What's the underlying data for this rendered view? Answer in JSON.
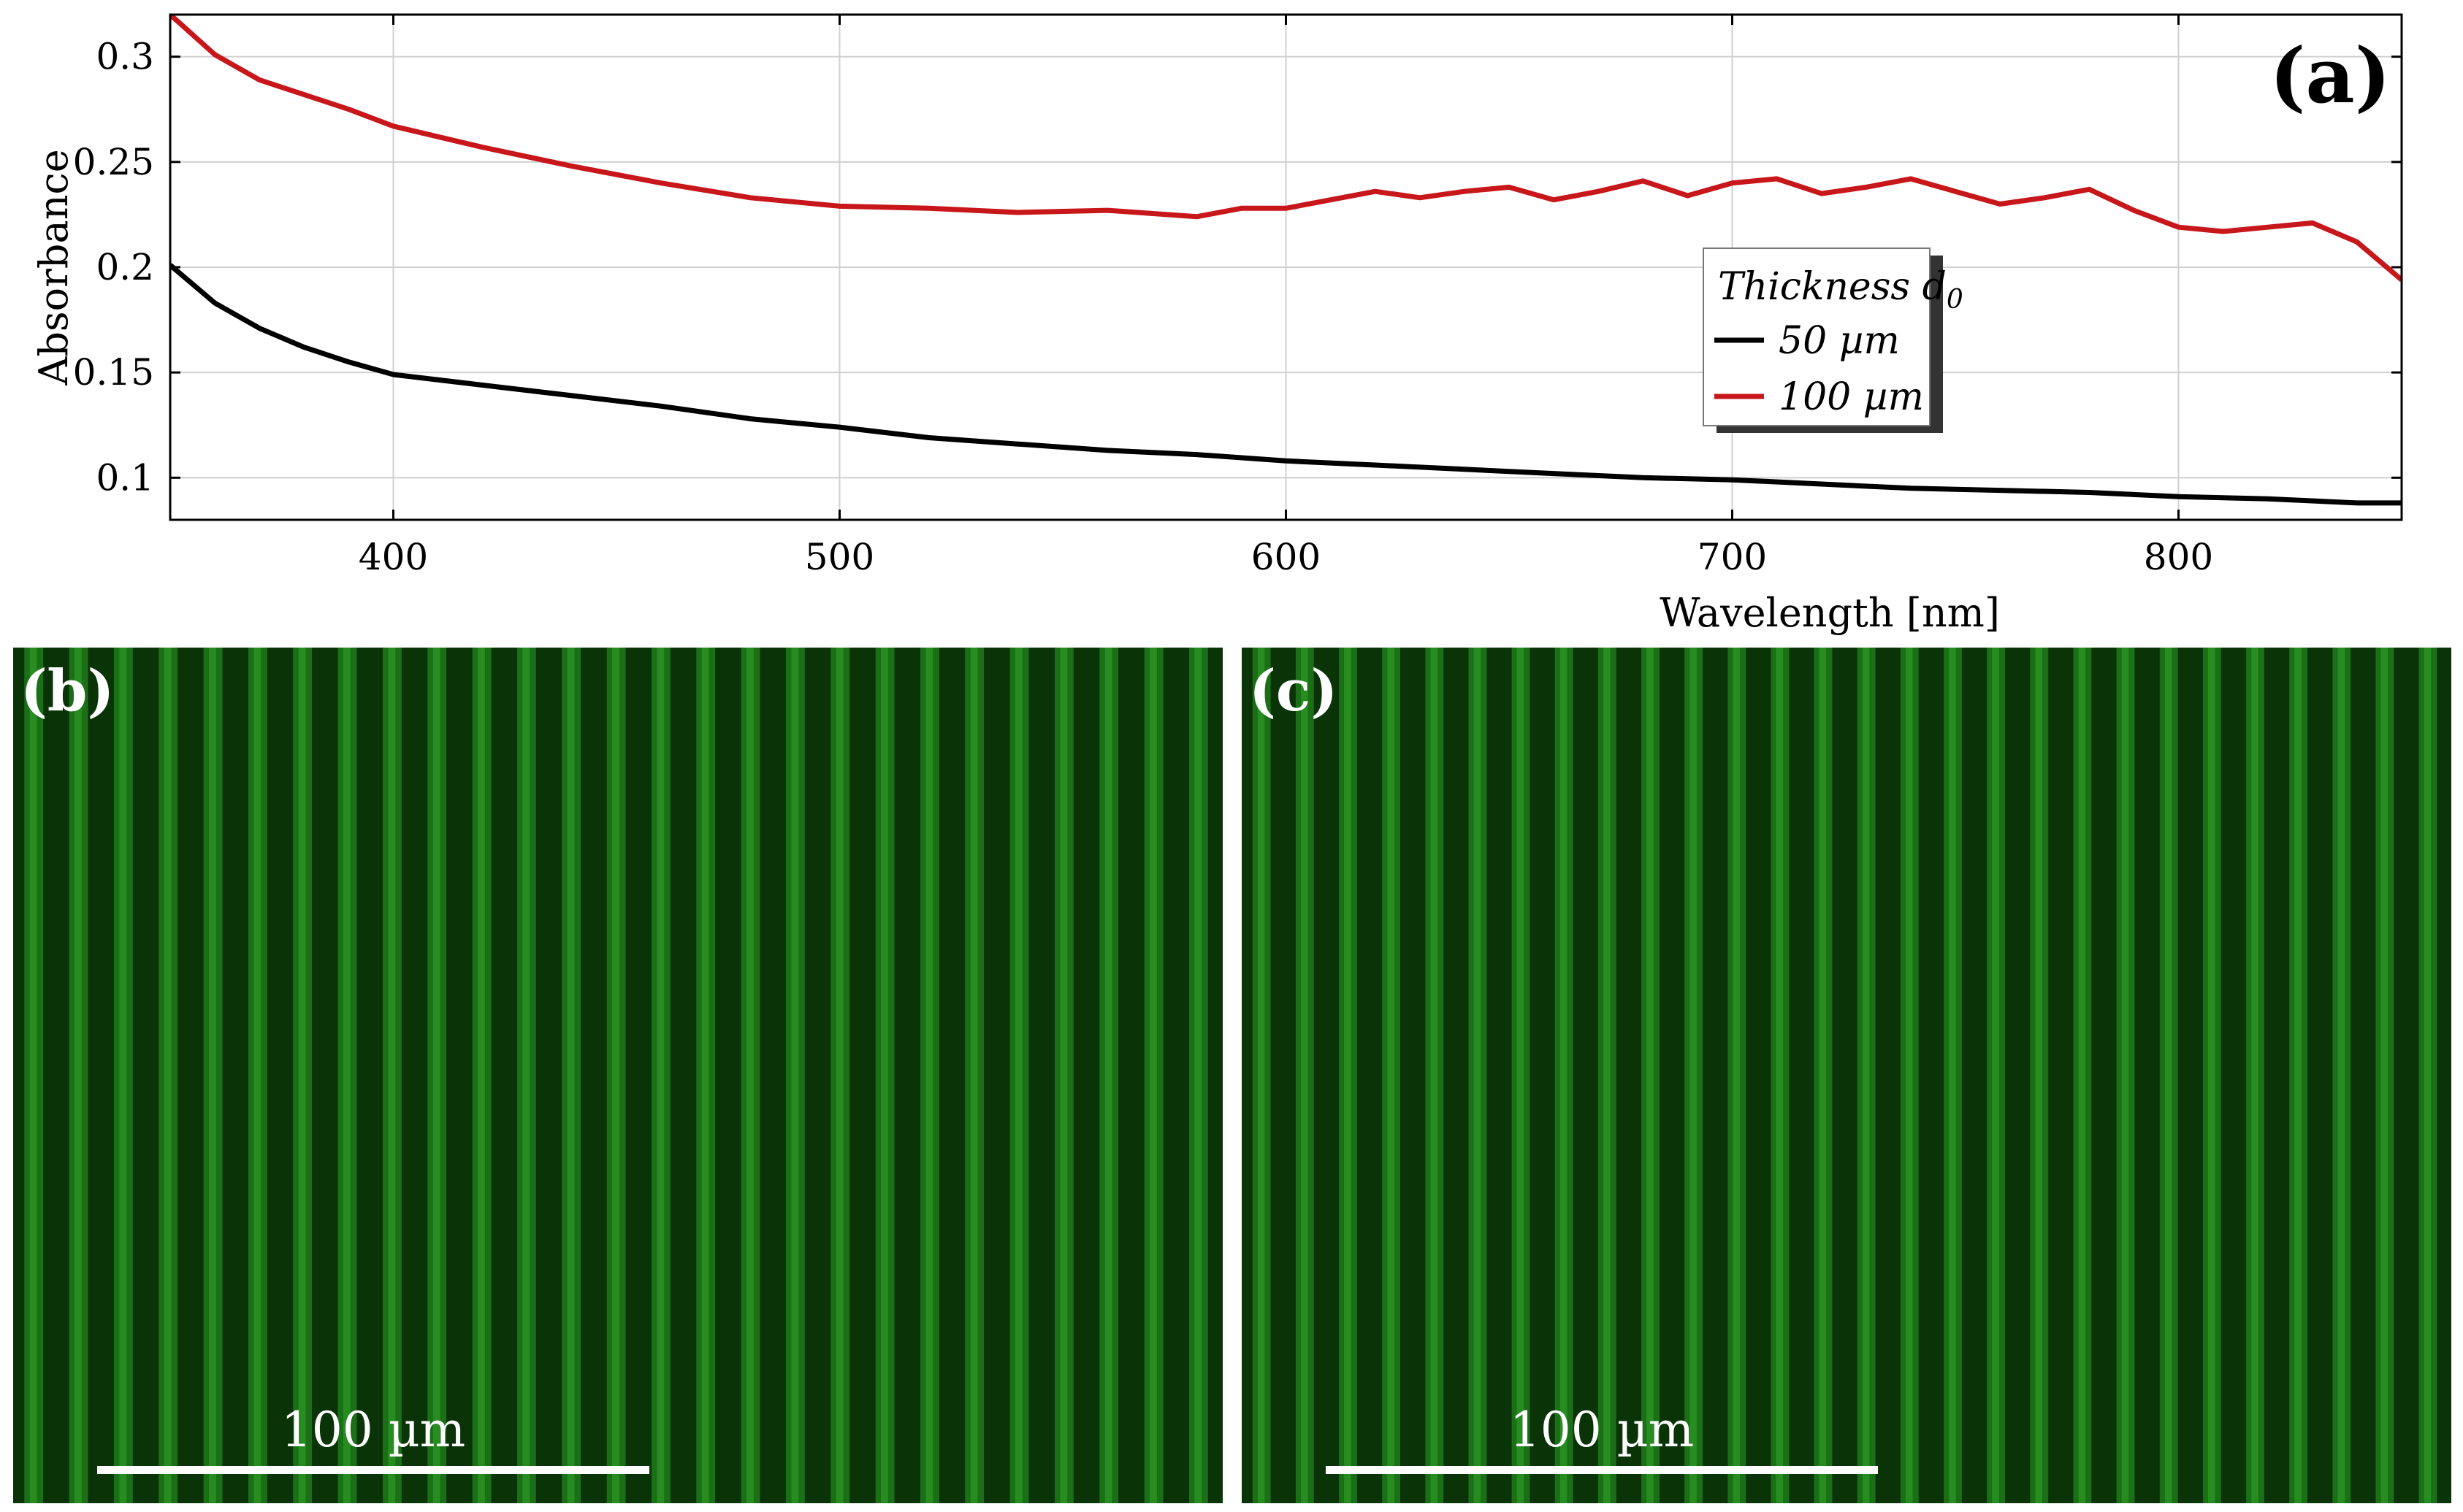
{
  "chart_data": {
    "panel_label": "(a)",
    "type": "line",
    "title": "",
    "xlabel": "Wavelength [nm]",
    "ylabel": "Absorbance",
    "xlim": [
      350,
      850
    ],
    "ylim": [
      0.08,
      0.32
    ],
    "xticks": [
      400,
      500,
      600,
      700,
      800
    ],
    "xtick_labels": [
      "400",
      "500",
      "600",
      "700",
      "800"
    ],
    "yticks": [
      0.1,
      0.15,
      0.2,
      0.25,
      0.3
    ],
    "ytick_labels": [
      "0.1",
      "0.15",
      "0.2",
      "0.25",
      "0.3"
    ],
    "grid": true,
    "legend": {
      "title": "Thickness d",
      "title_sub": "0",
      "location": "center-right"
    },
    "series": [
      {
        "name": "50 µm",
        "color": "#000000",
        "x": [
          350,
          360,
          370,
          380,
          390,
          400,
          420,
          440,
          460,
          480,
          500,
          520,
          540,
          560,
          580,
          600,
          620,
          640,
          660,
          680,
          700,
          720,
          740,
          760,
          780,
          800,
          820,
          840,
          850
        ],
        "y": [
          0.201,
          0.183,
          0.171,
          0.162,
          0.155,
          0.149,
          0.144,
          0.139,
          0.134,
          0.128,
          0.124,
          0.119,
          0.116,
          0.113,
          0.111,
          0.108,
          0.106,
          0.104,
          0.102,
          0.1,
          0.099,
          0.097,
          0.095,
          0.094,
          0.093,
          0.091,
          0.09,
          0.088,
          0.088
        ]
      },
      {
        "name": "100 µm",
        "color": "#c8171b",
        "x": [
          350,
          360,
          370,
          380,
          390,
          400,
          420,
          440,
          460,
          480,
          500,
          520,
          540,
          560,
          580,
          590,
          600,
          620,
          630,
          640,
          650,
          660,
          670,
          680,
          690,
          700,
          710,
          720,
          730,
          740,
          750,
          760,
          770,
          780,
          790,
          800,
          810,
          820,
          830,
          840,
          850
        ],
        "y": [
          0.32,
          0.301,
          0.289,
          0.282,
          0.275,
          0.267,
          0.257,
          0.248,
          0.24,
          0.233,
          0.229,
          0.228,
          0.226,
          0.227,
          0.224,
          0.228,
          0.228,
          0.236,
          0.233,
          0.236,
          0.238,
          0.232,
          0.236,
          0.241,
          0.234,
          0.24,
          0.242,
          0.235,
          0.238,
          0.242,
          0.236,
          0.23,
          0.233,
          0.237,
          0.227,
          0.219,
          0.217,
          0.219,
          0.221,
          0.212,
          0.194
        ]
      }
    ]
  },
  "micrographs": [
    {
      "panel_label": "(b)",
      "scale_label": "100 µm",
      "stripe_count": 27
    },
    {
      "panel_label": "(c)",
      "scale_label": "100 µm",
      "stripe_count": 28
    }
  ]
}
